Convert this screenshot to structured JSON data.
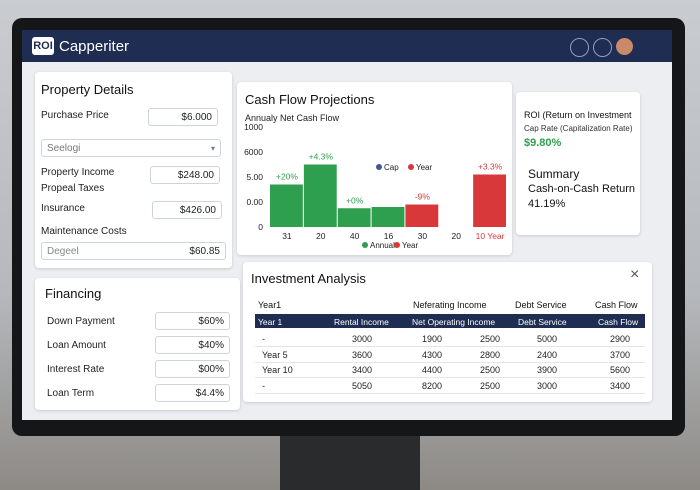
{
  "header": {
    "logo": "ROI",
    "title": "Capperiter"
  },
  "property": {
    "title": "Property Details",
    "purchase_label": "Purchase Price",
    "purchase_value": "$6.000",
    "select": "Seelogi",
    "income_label": "Property Income",
    "income_value": "$248.00",
    "taxes_label": "Propeal Taxes",
    "insurance_label": "Insurance",
    "insurance_value": "$426.00",
    "maintenance_label": "Maintenance Costs",
    "maintenance_placeholder": "Degeel",
    "maintenance_value": "$60.85"
  },
  "financing": {
    "title": "Financing",
    "rows": [
      [
        "Down Payment",
        "$60%"
      ],
      [
        "Loan Amount",
        "$40%"
      ],
      [
        "Interest Rate",
        "$00%"
      ],
      [
        "Loan Term",
        "$4.4%"
      ]
    ]
  },
  "cash_flow": {
    "title": "Cash Flow Projections",
    "subtitle": "Annualy Net Cash Flow",
    "chart": {
      "type": "bar",
      "categories": [
        "31",
        "20",
        "40",
        "16",
        "30",
        "20",
        "10 Year"
      ],
      "values": [
        1.7,
        2.5,
        0.75,
        0.8,
        0.9,
        null,
        2.1
      ],
      "colors": [
        "#2e9e4f",
        "#2e9e4f",
        "#2e9e4f",
        "#2e9e4f",
        "#d9383a",
        "#d9383a",
        "#d9383a"
      ],
      "annotations": [
        "+20%",
        "+4.3%",
        "+0%",
        null,
        "-9%",
        null,
        "+3.3%"
      ],
      "ylim": [
        0,
        4
      ],
      "yticks": [
        {
          "value": 0,
          "label": "0"
        },
        {
          "value": 1,
          "label": "0.00"
        },
        {
          "value": 2,
          "label": "5.00"
        },
        {
          "value": 3,
          "label": "6000"
        },
        {
          "value": 4,
          "label": "1000"
        }
      ],
      "legend": [
        {
          "name": "Cap",
          "color": "#3b5998"
        },
        {
          "name": "Year",
          "color": "#d9383a"
        }
      ],
      "legend_bottom": [
        {
          "name": "Annual",
          "color": "#2e9e4f"
        },
        {
          "name": "Year",
          "color": "#d9383a"
        }
      ]
    }
  },
  "roi": {
    "title": "ROI (Return on Investment",
    "subtitle": "Cap Rate (Capitalization Rate)",
    "value": "$9.80%",
    "summary": "Summary",
    "coc_label": "Cash-on-Cash Return",
    "coc_value": "41.19%"
  },
  "analysis": {
    "title": "Investment Analysis",
    "top_headers": [
      "Year1",
      "Neferating Income",
      "Debt Service",
      "Cash Flow"
    ],
    "table": {
      "headers": [
        "Year 1",
        "Rental Income",
        "Net Operating Income",
        "Debt Service",
        "Cash Flow"
      ],
      "rows": [
        [
          "-",
          "3000",
          "1900",
          "2500",
          "5000",
          "2900"
        ],
        [
          "Year 5",
          "3600",
          "4300",
          "2800",
          "2400",
          "3700"
        ],
        [
          "Year 10",
          "3400",
          "4400",
          "2500",
          "3900",
          "5600"
        ],
        [
          "-",
          "5050",
          "8200",
          "2500",
          "3000",
          "3400"
        ]
      ]
    }
  }
}
